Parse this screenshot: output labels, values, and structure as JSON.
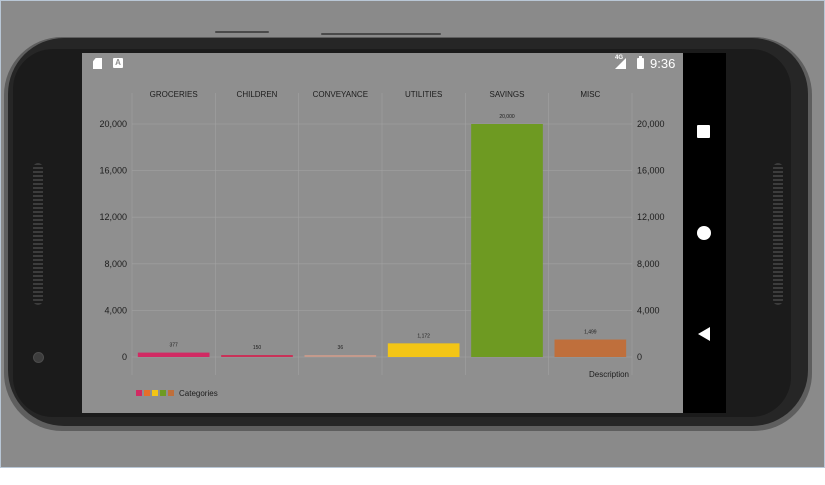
{
  "status_bar": {
    "time": "9:36",
    "network": "4G"
  },
  "chart_data": {
    "type": "bar",
    "categories": [
      "GROCERIES",
      "CHILDREN",
      "CONVEYANCE",
      "UTILITIES",
      "SAVINGS",
      "MISC"
    ],
    "values": [
      377,
      150,
      36,
      1172,
      20000,
      1499
    ],
    "value_labels": [
      "377",
      "150",
      "36",
      "1,172",
      "20,000",
      "1,499"
    ],
    "colors": [
      "#d12a63",
      "#c93258",
      "#c49a8c",
      "#f3c516",
      "#6e9a22",
      "#bf6f3c"
    ],
    "ylim": [
      0,
      20000
    ],
    "yticks": [
      0,
      4000,
      8000,
      12000,
      16000,
      20000
    ],
    "ytick_labels": [
      "0",
      "4,000",
      "8,000",
      "12,000",
      "16,000",
      "20,000"
    ],
    "axes": "left-and-right",
    "category_labels_position": "top",
    "grid": true,
    "description": "Description",
    "legend": {
      "label": "Categories",
      "colors": [
        "#d12a63",
        "#e66f2a",
        "#f3c516",
        "#6e9a22",
        "#bf6f3c"
      ],
      "placement": "bottom-left"
    }
  },
  "nav": {
    "recents": "square-icon",
    "home": "circle-icon",
    "back": "triangle-back-icon"
  }
}
